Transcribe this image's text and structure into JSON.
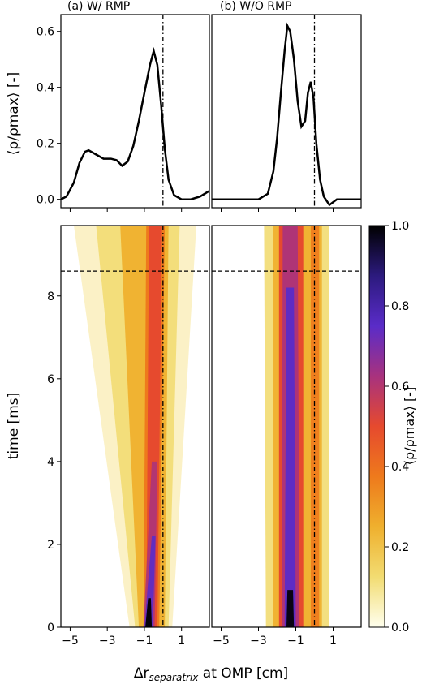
{
  "chart_data": [
    {
      "type": "line",
      "panel": "top-left",
      "title": "(a) W/ RMP",
      "ylabel": "⟨ρ/ρmax⟩ [-]",
      "xlim": [
        -5.5,
        2.5
      ],
      "ylim": [
        -0.03,
        0.66
      ],
      "yticks": [
        "0.0",
        "0.2",
        "0.4",
        "0.6"
      ],
      "yticks_values": [
        0.0,
        0.2,
        0.4,
        0.6
      ],
      "xticks_values": [
        -5,
        -3,
        -1,
        1
      ],
      "series": [
        {
          "x": [
            -5.5,
            -5.2,
            -4.8,
            -4.5,
            -4.2,
            -4.0,
            -3.6,
            -3.2,
            -2.8,
            -2.5,
            -2.2,
            -1.9,
            -1.6,
            -1.3,
            -1.0,
            -0.7,
            -0.5,
            -0.3,
            -0.1,
            0.1,
            0.3,
            0.6,
            1.0,
            1.5,
            2.0,
            2.5
          ],
          "y": [
            0.0,
            0.01,
            0.06,
            0.13,
            0.17,
            0.175,
            0.16,
            0.145,
            0.145,
            0.14,
            0.12,
            0.135,
            0.19,
            0.28,
            0.38,
            0.48,
            0.53,
            0.48,
            0.34,
            0.18,
            0.07,
            0.015,
            0.0,
            0.0,
            0.01,
            0.03
          ]
        }
      ],
      "vline_x": 0,
      "grid": false
    },
    {
      "type": "line",
      "panel": "top-right",
      "title": "(b) W/O RMP",
      "xlim": [
        -5.5,
        2.5
      ],
      "ylim": [
        -0.03,
        0.66
      ],
      "xticks_values": [
        -5,
        -3,
        -1,
        1
      ],
      "series": [
        {
          "x": [
            -5.5,
            -4.0,
            -3.0,
            -2.5,
            -2.2,
            -2.0,
            -1.8,
            -1.6,
            -1.45,
            -1.3,
            -1.1,
            -0.9,
            -0.7,
            -0.5,
            -0.35,
            -0.2,
            -0.05,
            0.1,
            0.3,
            0.5,
            0.8,
            1.2,
            2.5
          ],
          "y": [
            0.0,
            0.0,
            0.0,
            0.02,
            0.1,
            0.22,
            0.38,
            0.53,
            0.62,
            0.6,
            0.5,
            0.35,
            0.26,
            0.28,
            0.38,
            0.42,
            0.36,
            0.2,
            0.07,
            0.01,
            -0.02,
            0.0,
            0.0
          ]
        }
      ],
      "vline_x": 0,
      "grid": false
    },
    {
      "type": "heatmap",
      "panel": "bottom-left",
      "ylabel": "time [ms]",
      "xlim": [
        -5.5,
        2.5
      ],
      "ylim": [
        0,
        9.7
      ],
      "yticks": [
        "0",
        "2",
        "4",
        "6",
        "8"
      ],
      "yticks_values": [
        0,
        2,
        4,
        6,
        8
      ],
      "xticks": [
        "−5",
        "−3",
        "−1",
        "1"
      ],
      "xticks_values": [
        -5,
        -3,
        -1,
        1
      ],
      "vline_x": 0,
      "hline_y": 8.6
    },
    {
      "type": "heatmap",
      "panel": "bottom-right",
      "xlim": [
        -5.5,
        2.5
      ],
      "ylim": [
        0,
        9.7
      ],
      "xticks": [
        "−5",
        "−3",
        "−1",
        "1"
      ],
      "xticks_values": [
        -5,
        -3,
        -1,
        1
      ],
      "vline_x": 0,
      "hline_y": 8.6
    }
  ],
  "xlabel_shared": "Δr",
  "xlabel_sub": "separatrix",
  "xlabel_rest": " at OMP [cm]",
  "colorbar": {
    "ticks": [
      "0.0",
      "0.2",
      "0.4",
      "0.6",
      "0.8",
      "1.0"
    ],
    "ticks_values": [
      0.0,
      0.2,
      0.4,
      0.6,
      0.8,
      1.0
    ],
    "label": "⟨ρ/ρmax⟩ [-]",
    "colormap": "CMRmap_r",
    "colors": [
      "#ffffee",
      "#f2dc72",
      "#efb02e",
      "#ee7a1c",
      "#e64a2e",
      "#a8327e",
      "#5a2cc8",
      "#2c1a7e",
      "#000000"
    ]
  }
}
